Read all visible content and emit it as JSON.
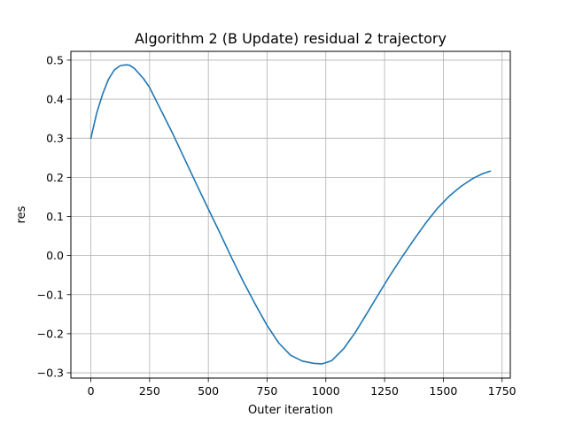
{
  "chart_data": {
    "type": "line",
    "title": "Algorithm 2 (B Update) residual 2 trajectory",
    "xlabel": "Outer iteration",
    "ylabel": "res",
    "xlim": [
      -85,
      1785
    ],
    "ylim": [
      -0.3135,
      0.5225
    ],
    "xticks": [
      0,
      250,
      500,
      750,
      1000,
      1250,
      1500,
      1750
    ],
    "xtick_labels": [
      "0",
      "250",
      "500",
      "750",
      "1000",
      "1250",
      "1500",
      "1750"
    ],
    "yticks": [
      -0.3,
      -0.2,
      -0.1,
      0.0,
      0.1,
      0.2,
      0.3,
      0.4,
      0.5
    ],
    "ytick_labels": [
      "−0.3",
      "−0.2",
      "−0.1",
      "0.0",
      "0.1",
      "0.2",
      "0.3",
      "0.4",
      "0.5"
    ],
    "grid": true,
    "series": [
      {
        "color": "#1f77b4",
        "x": [
          0,
          25,
          50,
          75,
          100,
          125,
          150,
          165,
          185,
          200,
          225,
          250,
          300,
          350,
          400,
          450,
          500,
          550,
          600,
          650,
          700,
          750,
          800,
          850,
          900,
          950,
          985,
          1025,
          1075,
          1125,
          1175,
          1225,
          1275,
          1325,
          1375,
          1425,
          1475,
          1525,
          1575,
          1625,
          1665,
          1700
        ],
        "y": [
          0.3,
          0.365,
          0.413,
          0.451,
          0.475,
          0.486,
          0.488,
          0.487,
          0.479,
          0.469,
          0.452,
          0.43,
          0.37,
          0.31,
          0.246,
          0.182,
          0.119,
          0.057,
          -0.007,
          -0.068,
          -0.125,
          -0.179,
          -0.224,
          -0.255,
          -0.27,
          -0.276,
          -0.277,
          -0.269,
          -0.239,
          -0.197,
          -0.148,
          -0.098,
          -0.049,
          -0.003,
          0.041,
          0.083,
          0.121,
          0.152,
          0.177,
          0.197,
          0.209,
          0.216
        ]
      }
    ]
  }
}
